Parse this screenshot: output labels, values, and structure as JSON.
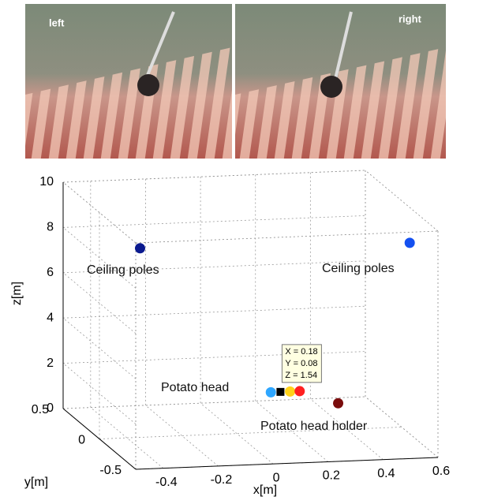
{
  "photos": [
    {
      "label": "left"
    },
    {
      "label": "right"
    }
  ],
  "chart_data": {
    "type": "scatter3d",
    "xlabel": "x[m]",
    "ylabel": "y[m]",
    "zlabel": "z[m]",
    "xlim": [
      -0.5,
      0.6
    ],
    "xticks": [
      -0.4,
      -0.2,
      0,
      0.2,
      0.4,
      0.6
    ],
    "ylim": [
      -0.5,
      0.5
    ],
    "yticks": [
      -0.5,
      0,
      0.5
    ],
    "zlim": [
      0,
      10
    ],
    "zticks": [
      0,
      2,
      4,
      6,
      8,
      10
    ],
    "grid": true,
    "series": [
      {
        "color": "#0b1a8f",
        "marker": "o",
        "x": [
          -0.22
        ],
        "y": [
          0.5
        ],
        "z": [
          6.95
        ]
      },
      {
        "color": "#1450f0",
        "marker": "o",
        "x": [
          0.55
        ],
        "y": [
          -0.3
        ],
        "z": [
          8.97
        ]
      },
      {
        "color": "#2ea6ff",
        "marker": "o",
        "x": [
          0.145
        ],
        "y": [
          0.08
        ],
        "z": [
          1.54
        ]
      },
      {
        "color": "#000000",
        "marker": "s",
        "x": [
          0.18
        ],
        "y": [
          0.08
        ],
        "z": [
          1.54
        ]
      },
      {
        "color": "#ffd21a",
        "marker": "o",
        "x": [
          0.215
        ],
        "y": [
          0.08
        ],
        "z": [
          1.54
        ]
      },
      {
        "color": "#ff2020",
        "marker": "o",
        "x": [
          0.25
        ],
        "y": [
          0.08
        ],
        "z": [
          1.54
        ]
      },
      {
        "color": "#7a0c0c",
        "marker": "o",
        "x": [
          0.39
        ],
        "y": [
          0.08
        ],
        "z": [
          0.94
        ]
      }
    ],
    "annotations": [
      "Ceiling poles",
      "Ceiling poles",
      "Potato head",
      "Potato head holder"
    ],
    "datatip": [
      "X = 0.18",
      "Y = 0.08",
      "Z = 1.54"
    ]
  }
}
